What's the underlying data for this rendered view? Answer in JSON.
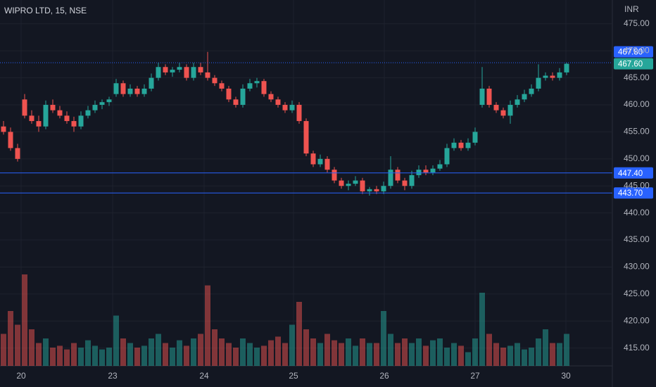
{
  "chart_data": {
    "type": "candlestick",
    "title": "WIPRO LTD, 15, NSE",
    "currency": "INR",
    "up_color": "#26a69a",
    "down_color": "#ef5350",
    "grid": true,
    "ylim": [
      411.7,
      479.4
    ],
    "yticks": [
      {
        "value": 415,
        "label": "415.00"
      },
      {
        "value": 420,
        "label": "420.00"
      },
      {
        "value": 425,
        "label": "425.00"
      },
      {
        "value": 430,
        "label": "430.00"
      },
      {
        "value": 435,
        "label": "435.00"
      },
      {
        "value": 440,
        "label": "440.00"
      },
      {
        "value": 445,
        "label": "445.00"
      },
      {
        "value": 450,
        "label": "450.00"
      },
      {
        "value": 455,
        "label": "455.00"
      },
      {
        "value": 460,
        "label": "460.00"
      },
      {
        "value": 465,
        "label": "465.00"
      },
      {
        "value": 470,
        "label": "470.00"
      },
      {
        "value": 475,
        "label": "475.00"
      }
    ],
    "xlim": [
      0,
      81
    ],
    "xticks": [
      {
        "value": 3,
        "label": "20"
      },
      {
        "value": 16,
        "label": "23"
      },
      {
        "value": 29,
        "label": "24"
      },
      {
        "value": 41.7,
        "label": "25"
      },
      {
        "value": 54.6,
        "label": "26"
      },
      {
        "value": 67.5,
        "label": "27"
      },
      {
        "value": 80.4,
        "label": "30"
      }
    ],
    "price_lines": [
      {
        "value": 467.8,
        "label": "467.80",
        "color": "#2962ff",
        "style": "dotted"
      },
      {
        "value": 467.6,
        "label": "467.60",
        "color": "#26a69a",
        "style": "none"
      },
      {
        "value": 447.4,
        "label": "447.40",
        "color": "#2962ff",
        "style": "solid"
      },
      {
        "value": 443.7,
        "label": "443.70",
        "color": "#2962ff",
        "style": "solid"
      }
    ],
    "candles": [
      [
        456,
        457,
        454.5,
        455
      ],
      [
        455,
        455.8,
        451.5,
        452
      ],
      [
        452,
        452.8,
        449.5,
        450
      ],
      [
        461,
        462,
        457.5,
        458
      ],
      [
        458,
        459,
        456.5,
        457
      ],
      [
        457,
        458,
        455,
        456
      ],
      [
        456,
        460.8,
        455.5,
        460
      ],
      [
        460,
        461,
        458.5,
        459
      ],
      [
        459,
        459.8,
        457.5,
        458
      ],
      [
        458,
        458.8,
        456.5,
        457
      ],
      [
        457,
        457.8,
        455,
        456
      ],
      [
        456,
        458.8,
        455.5,
        458
      ],
      [
        458,
        459.8,
        457.5,
        459
      ],
      [
        459,
        460.8,
        458.5,
        460
      ],
      [
        460,
        461,
        459.2,
        460.5
      ],
      [
        460.5,
        461.5,
        459.8,
        461
      ],
      [
        462,
        464.8,
        461.5,
        464
      ],
      [
        464,
        464.5,
        461.5,
        462
      ],
      [
        462,
        463.8,
        461.5,
        463
      ],
      [
        463,
        463.5,
        461.5,
        462
      ],
      [
        462,
        463.8,
        461.5,
        463
      ],
      [
        463,
        465.8,
        462.5,
        465
      ],
      [
        465,
        467.8,
        464.5,
        467
      ],
      [
        467,
        467.5,
        465.5,
        466
      ],
      [
        466,
        467,
        465.2,
        466.5
      ],
      [
        466.5,
        467.8,
        466,
        467
      ],
      [
        467,
        467.5,
        464.5,
        465
      ],
      [
        465,
        467.8,
        464.5,
        467
      ],
      [
        467,
        467.8,
        465.5,
        466
      ],
      [
        466,
        469.8,
        464.5,
        465
      ],
      [
        465,
        465.5,
        463.5,
        464
      ],
      [
        464,
        464.5,
        462.5,
        463
      ],
      [
        463,
        463.5,
        460.5,
        461
      ],
      [
        461,
        461.5,
        459.5,
        460
      ],
      [
        460,
        463.8,
        459.5,
        463
      ],
      [
        463,
        464.8,
        462.5,
        464
      ],
      [
        464,
        465,
        463.2,
        464.4
      ],
      [
        464.4,
        464.8,
        461.5,
        462
      ],
      [
        462,
        462.5,
        460.5,
        461
      ],
      [
        461,
        461.5,
        459.5,
        460
      ],
      [
        460,
        460.5,
        458.5,
        459
      ],
      [
        459,
        460.8,
        458.5,
        460
      ],
      [
        460,
        460.5,
        456.5,
        457
      ],
      [
        457,
        457.5,
        450.5,
        451
      ],
      [
        451,
        451.5,
        448.5,
        449
      ],
      [
        449,
        450.8,
        448.5,
        450
      ],
      [
        450,
        450.5,
        447.5,
        448
      ],
      [
        448,
        448.5,
        445.5,
        446
      ],
      [
        446,
        446.5,
        444.5,
        445
      ],
      [
        445,
        446,
        444.2,
        445.4
      ],
      [
        445.4,
        446.8,
        445,
        446
      ],
      [
        446,
        446.5,
        443.5,
        444
      ],
      [
        444,
        444.8,
        443.2,
        444.4
      ],
      [
        444.4,
        445,
        443.5,
        444
      ],
      [
        444,
        445.8,
        443.5,
        445
      ],
      [
        445,
        450.5,
        444.5,
        448
      ],
      [
        448,
        448.5,
        445.5,
        446
      ],
      [
        446,
        446.5,
        444.2,
        445
      ],
      [
        445,
        447.8,
        444.5,
        447
      ],
      [
        447,
        448.8,
        446.5,
        448
      ],
      [
        448,
        448.8,
        447,
        447.5
      ],
      [
        447.5,
        448.8,
        447,
        448.2
      ],
      [
        448.2,
        449.8,
        447.8,
        449
      ],
      [
        449,
        452.8,
        448.5,
        452
      ],
      [
        452,
        453.8,
        451.5,
        453
      ],
      [
        453,
        453.5,
        451.5,
        452
      ],
      [
        452,
        453.8,
        451.5,
        453
      ],
      [
        453,
        455.8,
        452.5,
        455
      ],
      [
        460,
        467,
        459.5,
        463
      ],
      [
        463,
        463.5,
        459.5,
        460
      ],
      [
        460,
        460.5,
        458.5,
        459
      ],
      [
        459,
        459.5,
        457.5,
        458
      ],
      [
        458,
        460.8,
        456.5,
        460
      ],
      [
        460,
        461.8,
        459.5,
        461
      ],
      [
        461,
        462.8,
        460.5,
        462
      ],
      [
        462,
        463.8,
        461.5,
        463
      ],
      [
        463,
        467.5,
        462.5,
        465
      ],
      [
        465,
        466,
        464.5,
        465.4
      ],
      [
        465.4,
        466,
        464.5,
        465
      ],
      [
        465,
        466.8,
        464.5,
        466
      ],
      [
        466,
        467.8,
        465.5,
        467.6
      ]
    ],
    "volume": [
      35,
      60,
      45,
      100,
      40,
      25,
      30,
      20,
      22,
      18,
      25,
      20,
      28,
      22,
      18,
      20,
      55,
      30,
      25,
      20,
      22,
      30,
      35,
      25,
      20,
      28,
      22,
      30,
      35,
      88,
      40,
      30,
      25,
      20,
      30,
      25,
      20,
      22,
      28,
      32,
      25,
      45,
      70,
      40,
      30,
      25,
      35,
      28,
      25,
      30,
      22,
      30,
      25,
      25,
      60,
      35,
      25,
      30,
      25,
      30,
      22,
      28,
      30,
      20,
      25,
      22,
      15,
      30,
      80,
      35,
      25,
      20,
      22,
      25,
      18,
      20,
      30,
      40,
      25,
      25,
      35
    ]
  }
}
